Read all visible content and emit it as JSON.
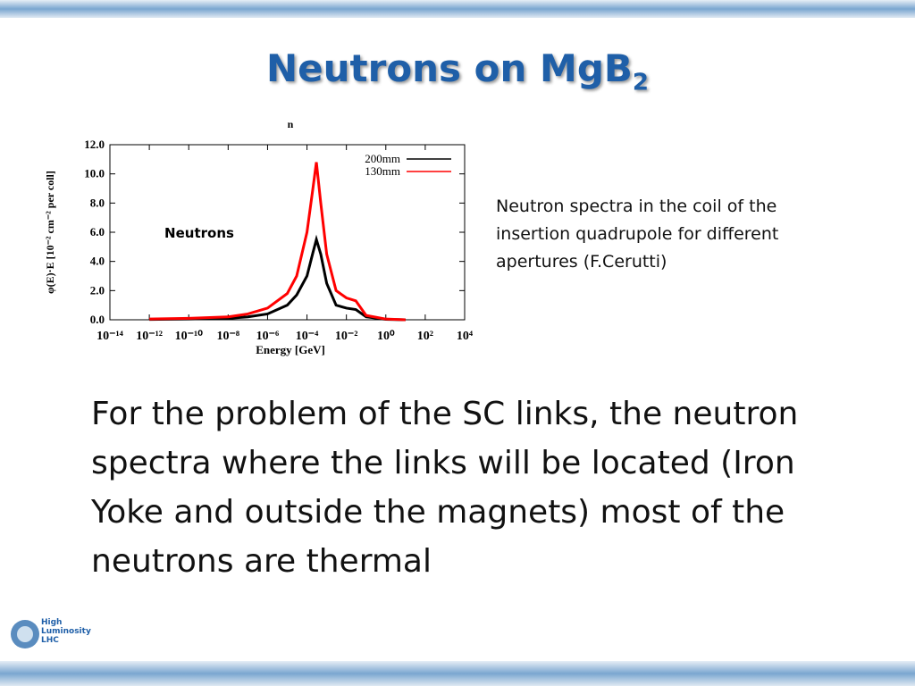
{
  "slide": {
    "title": {
      "text": "Neutrons on MgB",
      "subscript": "2"
    },
    "caption": "Neutron spectra in the coil of the insertion quadrupole for different apertures (F.Cerutti)",
    "body": "For the problem of the SC links, the neutron spectra where the links will be located (Iron Yoke and outside the magnets) most of the neutrons are thermal",
    "logo": [
      "High",
      "Luminosity",
      "LHC"
    ]
  },
  "chart_data": {
    "type": "line",
    "title": "n",
    "xlabel": "Energy [GeV]",
    "ylabel": "φ(E)·E [10⁻² cm⁻² per coll]",
    "annotation": "Neutrons",
    "xscale": "log",
    "x": [
      1e-12,
      1e-10,
      1e-08,
      1e-07,
      1e-06,
      1e-05,
      3e-05,
      0.0001,
      0.0002,
      0.0003,
      0.0005,
      0.001,
      0.003,
      0.01,
      0.03,
      0.1,
      1,
      10
    ],
    "series": [
      {
        "name": "200mm",
        "color": "#000000",
        "values": [
          0.02,
          0.05,
          0.1,
          0.2,
          0.4,
          1.0,
          1.7,
          3.0,
          4.6,
          5.5,
          4.5,
          2.5,
          1.0,
          0.8,
          0.7,
          0.2,
          0.03,
          0
        ]
      },
      {
        "name": "130mm",
        "color": "#ff0000",
        "values": [
          0.05,
          0.1,
          0.2,
          0.4,
          0.8,
          1.8,
          3.0,
          6.0,
          9.0,
          10.8,
          8.0,
          4.5,
          2.0,
          1.5,
          1.3,
          0.3,
          0.05,
          0
        ]
      }
    ],
    "xlim": [
      1e-14,
      10000.0
    ],
    "xticks": [
      {
        "value": 1e-14,
        "label": "10⁻¹⁴"
      },
      {
        "value": 1e-12,
        "label": "10⁻¹²"
      },
      {
        "value": 1e-10,
        "label": "10⁻¹⁰"
      },
      {
        "value": 1e-08,
        "label": "10⁻⁸"
      },
      {
        "value": 1e-06,
        "label": "10⁻⁶"
      },
      {
        "value": 0.0001,
        "label": "10⁻⁴"
      },
      {
        "value": 0.01,
        "label": "10⁻²"
      },
      {
        "value": 1,
        "label": "10⁰"
      },
      {
        "value": 100,
        "label": "10²"
      },
      {
        "value": 10000,
        "label": "10⁴"
      }
    ],
    "ylim": [
      0,
      12
    ],
    "yticks": [
      {
        "value": 0,
        "label": "0.0"
      },
      {
        "value": 2,
        "label": "2.0"
      },
      {
        "value": 4,
        "label": "4.0"
      },
      {
        "value": 6,
        "label": "6.0"
      },
      {
        "value": 8,
        "label": "8.0"
      },
      {
        "value": 10,
        "label": "10.0"
      },
      {
        "value": 12,
        "label": "12.0"
      }
    ],
    "legend": "upper right"
  }
}
